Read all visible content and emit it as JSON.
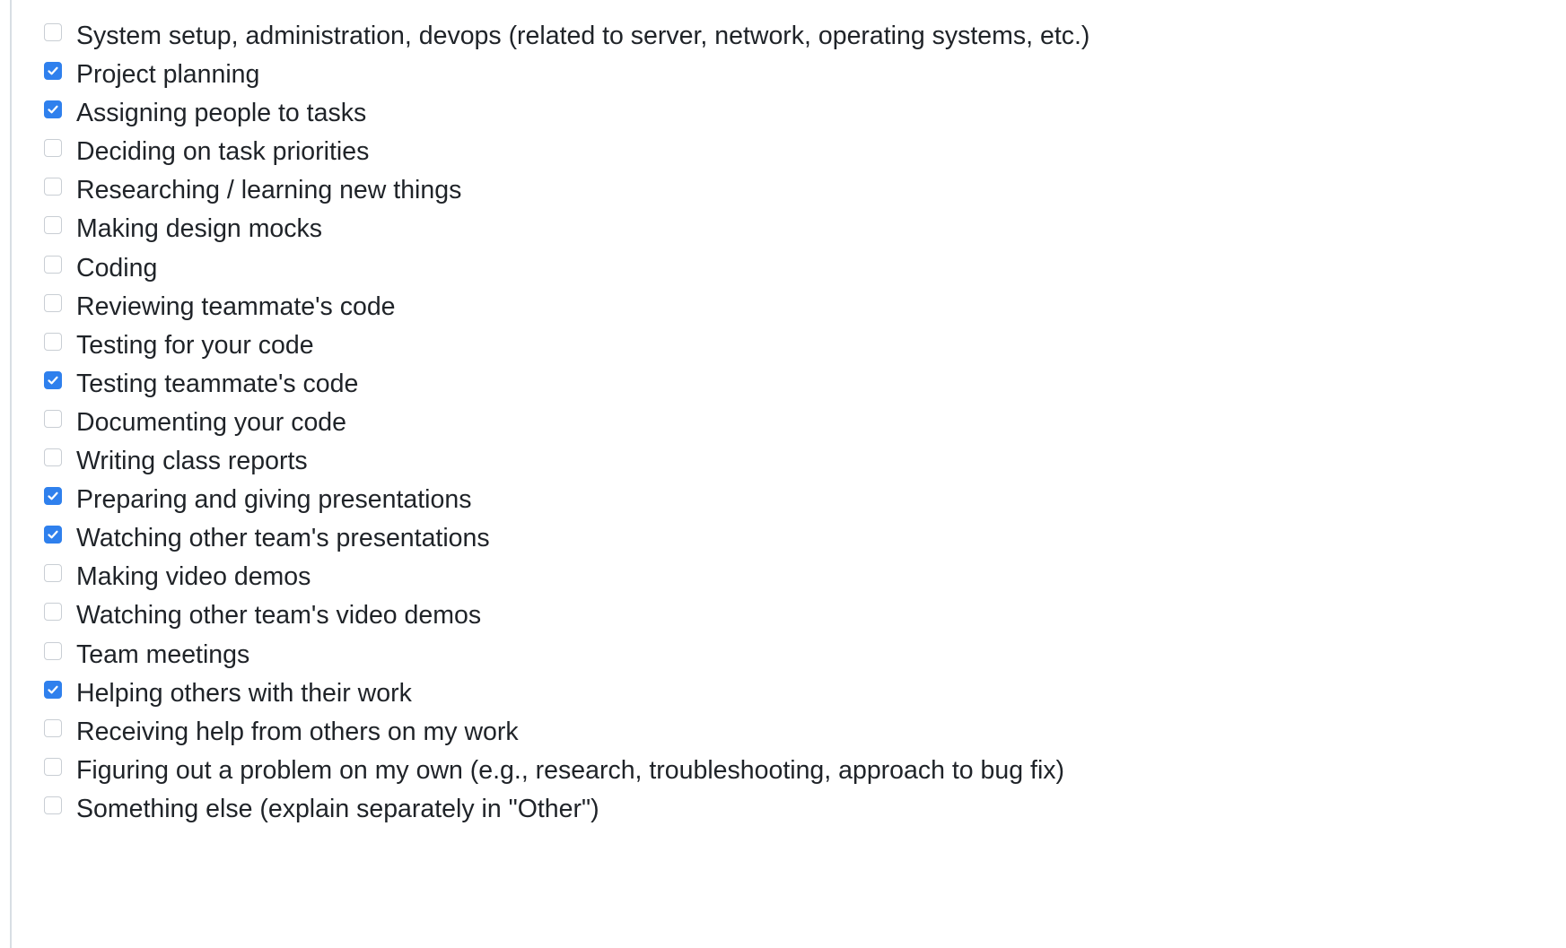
{
  "task_list": {
    "items": [
      {
        "label": "System setup, administration, devops (related to server, network, operating systems, etc.)",
        "checked": false
      },
      {
        "label": "Project planning",
        "checked": true
      },
      {
        "label": "Assigning people to tasks",
        "checked": true
      },
      {
        "label": "Deciding on task priorities",
        "checked": false
      },
      {
        "label": "Researching / learning new things",
        "checked": false
      },
      {
        "label": "Making design mocks",
        "checked": false
      },
      {
        "label": "Coding",
        "checked": false
      },
      {
        "label": "Reviewing teammate's code",
        "checked": false
      },
      {
        "label": "Testing for your code",
        "checked": false
      },
      {
        "label": "Testing teammate's code",
        "checked": true
      },
      {
        "label": "Documenting your code",
        "checked": false
      },
      {
        "label": "Writing class reports",
        "checked": false
      },
      {
        "label": "Preparing and giving presentations",
        "checked": true
      },
      {
        "label": "Watching other team's presentations",
        "checked": true
      },
      {
        "label": "Making video demos",
        "checked": false
      },
      {
        "label": "Watching other team's video demos",
        "checked": false
      },
      {
        "label": "Team meetings",
        "checked": false
      },
      {
        "label": "Helping others with their work",
        "checked": true
      },
      {
        "label": "Receiving help from others on my work",
        "checked": false
      },
      {
        "label": "Figuring out a problem on my own (e.g., research, troubleshooting, approach to bug fix)",
        "checked": false
      },
      {
        "label": "Something else (explain separately in \"Other\")",
        "checked": false
      }
    ]
  },
  "colors": {
    "checkbox_checked": "#2f80ed",
    "checkbox_border": "#c9ced4",
    "text": "#1f2328",
    "left_rule": "#d8dee4"
  },
  "icons": {
    "checked_mark": "checkmark-icon"
  }
}
